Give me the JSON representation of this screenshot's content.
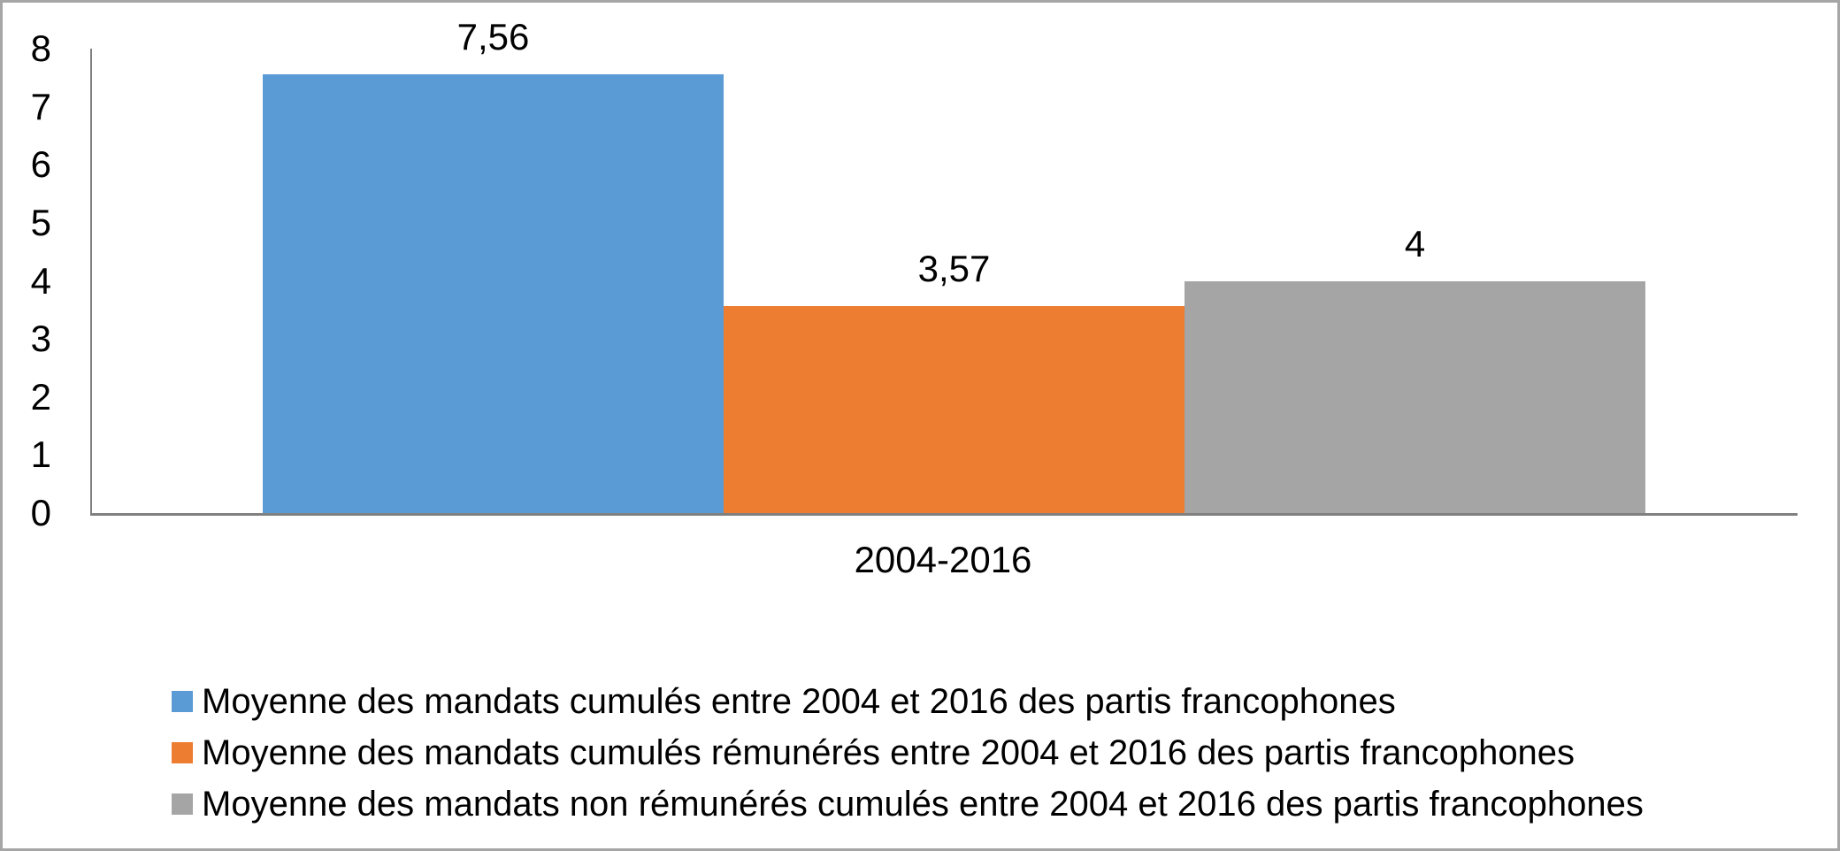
{
  "chart_data": {
    "type": "bar",
    "categories": [
      "2004-2016"
    ],
    "series": [
      {
        "name": "Moyenne des mandats cumulés entre 2004 et 2016 des partis francophones",
        "color": "#5B9BD5",
        "values": [
          7.56
        ],
        "data_labels": [
          "7,56"
        ]
      },
      {
        "name": "Moyenne des mandats cumulés rémunérés entre 2004 et 2016 des partis francophones",
        "color": "#ED7D31",
        "values": [
          3.57
        ],
        "data_labels": [
          "3,57"
        ]
      },
      {
        "name": "Moyenne des mandats non rémunérés cumulés entre 2004 et 2016 des partis francophones",
        "color": "#A5A5A5",
        "values": [
          4
        ],
        "data_labels": [
          "4"
        ]
      }
    ],
    "title": "",
    "xlabel": "",
    "ylabel": "",
    "ylim": [
      0,
      8
    ],
    "yticks": [
      0,
      1,
      2,
      3,
      4,
      5,
      6,
      7,
      8
    ],
    "grid": false,
    "legend_position": "bottom-left",
    "colors": {
      "axis": "#808080",
      "text": "#000000",
      "border": "#A6A6A6",
      "background": "#FFFFFF"
    }
  }
}
